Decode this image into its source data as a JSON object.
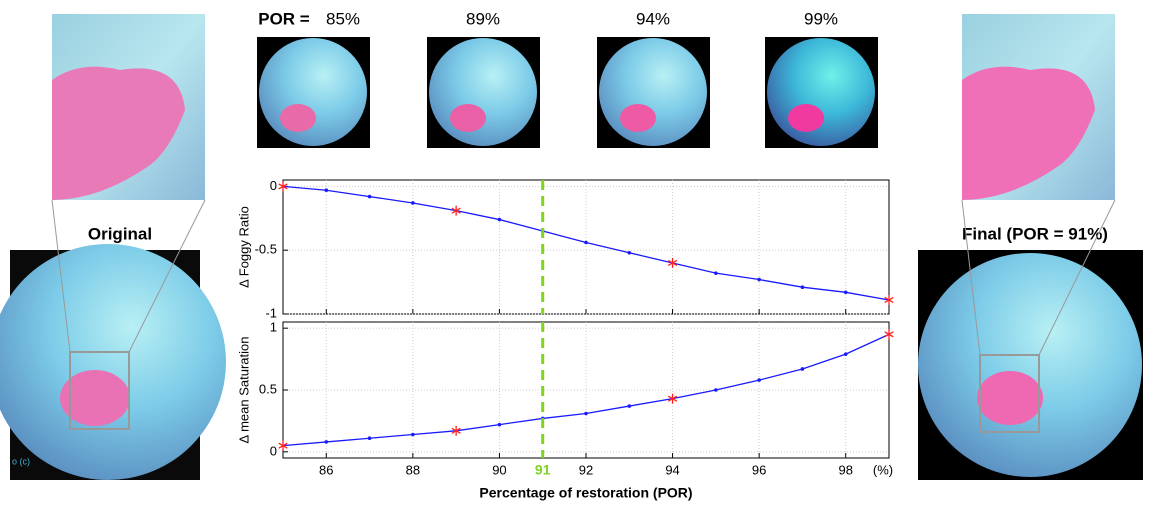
{
  "figure": {
    "por_label": "POR =",
    "thumbnails": [
      "85%",
      "89%",
      "94%",
      "99%"
    ],
    "original_label": "Original",
    "final_label": "Final (POR = 91%)",
    "corner_text": "o (c)"
  },
  "chart_data": [
    {
      "type": "line",
      "ylabel": "Δ Foggy Ratio",
      "x": [
        85,
        86,
        87,
        88,
        89,
        90,
        91,
        92,
        93,
        94,
        95,
        96,
        97,
        98,
        99
      ],
      "series": [
        {
          "color": "#1a1aff",
          "values": [
            0,
            -0.03,
            -0.08,
            -0.13,
            -0.19,
            -0.26,
            -0.35,
            -0.44,
            -0.52,
            -0.6,
            -0.68,
            -0.73,
            -0.79,
            -0.83,
            -0.89
          ]
        }
      ],
      "highlight_x": [
        85,
        89,
        94,
        99
      ],
      "highlight_color": "#ff2020",
      "xlim": [
        85,
        99
      ],
      "xticks": [
        86,
        88,
        90,
        92,
        94,
        96,
        98
      ],
      "ylim": [
        -1,
        0.05
      ],
      "yticks": [
        0,
        -0.5,
        -1
      ],
      "grid": true,
      "vline": 91,
      "vline_color": "#7fd321"
    },
    {
      "type": "line",
      "ylabel": "Δ mean Saturation",
      "xlabel": "Percentage of restoration (POR)",
      "x_unit": "(%)",
      "x": [
        85,
        86,
        87,
        88,
        89,
        90,
        91,
        92,
        93,
        94,
        95,
        96,
        97,
        98,
        99
      ],
      "series": [
        {
          "color": "#1a1aff",
          "values": [
            0.05,
            0.08,
            0.11,
            0.14,
            0.17,
            0.22,
            0.27,
            0.31,
            0.37,
            0.43,
            0.5,
            0.58,
            0.67,
            0.79,
            0.95
          ]
        }
      ],
      "highlight_x": [
        85,
        89,
        94,
        99
      ],
      "highlight_color": "#ff2020",
      "xlim": [
        85,
        99
      ],
      "xticks": [
        86,
        88,
        90,
        92,
        94,
        96,
        98
      ],
      "ylim": [
        -0.05,
        1.05
      ],
      "yticks": [
        0,
        0.5,
        1
      ],
      "grid": true,
      "vline": 91,
      "vline_color": "#7fd321"
    }
  ]
}
